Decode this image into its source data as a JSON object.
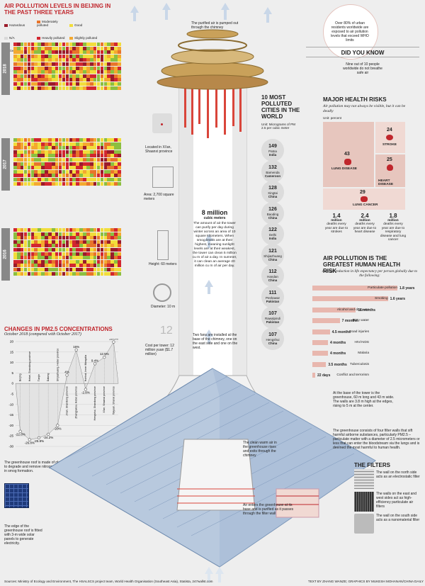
{
  "aq": {
    "title": "AIR POLLUTION LEVELS IN BEIJING IN THE PAST THREE YEARS",
    "legend": [
      {
        "label": "Hazardous",
        "color": "#9b1b2a"
      },
      {
        "label": "Moderately polluted",
        "color": "#e8742a"
      },
      {
        "label": "Good",
        "color": "#f2dd3b"
      },
      {
        "label": "N/A",
        "color": "#d9d9d9"
      },
      {
        "label": "Heavily polluted",
        "color": "#d2262f"
      },
      {
        "label": "Slightly polluted",
        "color": "#f4a92f"
      },
      {
        "label": "Excellent",
        "color": "#8cbf3f"
      }
    ],
    "years": [
      "2016",
      "2017",
      "2018"
    ],
    "months": [
      "JAN",
      "FEB",
      "MAR",
      "APR",
      "MAY",
      "JUN",
      "JUL",
      "AUG",
      "SEP",
      "OCT",
      "NOV",
      "DEC"
    ]
  },
  "tower": {
    "top_note": "The purified air is pumped out through the chimney",
    "location": "Located in Xi'an, Shaanxi province",
    "area": "Area: 2,700 square meters",
    "height": "Height: 60 meters",
    "diameter": "Diameter: 10 m",
    "cost_num": "12",
    "cost": "Cost per tower: 12 million yuan ($1.7 million)",
    "purify_big": "8 million",
    "purify_unit": "cubic meters",
    "purify_text": "The amount of air the tower can purify per day during winter across an area of 10 square kilometers. When smog levels are at their highest, meaning sunlight levels are at their weakest, the tower can clean 5 million cu m of air a day. In summer, it can clean an average 20 million cu m of air per day.",
    "fans_note": "Two fans are installed at the base of the chimney, one on the east side and one on the west.",
    "warm_note": "The clean warm air in the greenhouse rises and exits through the chimney",
    "enter_note": "Air enters the greenhouse at its base and is purified as it passes through the filter wall",
    "base_note": "At the base of the tower is the greenhouse, 60 m long and 43 m wide. The walls are 3.8 m high at the edges, rising to 5 m at the center.",
    "filter_note": "The greenhouse consists of four filter walls that sift harmful airborne substances, particularly PM2.5 – particulate matter with a diameter of 2.5 micrometers or less that can enter the bloodstream via the lungs and is deemed the most harmful to human health.",
    "glass_note": "The greenhouse roof is made of glass coated with a membrane that helps to degrade and remove nitrogen oxides, air pollutants considered crucial in smog formation.",
    "solar_note": "The edge of the greenhouse roof is fitted with 3-m wide solar panels to generate electricity."
  },
  "cities": {
    "title": "10 MOST POLLUTED CITIES IN THE WORLD",
    "sub": "Unit: Micrograms of PM 2.5 per cubic meter",
    "list": [
      {
        "v": "149",
        "city": "Patna",
        "country": "India"
      },
      {
        "v": "132",
        "city": "Bamenda",
        "country": "Cameroon"
      },
      {
        "v": "128",
        "city": "Xingtai",
        "country": "China"
      },
      {
        "v": "126",
        "city": "Baoding",
        "country": "China"
      },
      {
        "v": "122",
        "city": "Delhi",
        "country": "India"
      },
      {
        "v": "121",
        "city": "Shijiazhuang",
        "country": "China"
      },
      {
        "v": "112",
        "city": "Handan",
        "country": "China"
      },
      {
        "v": "111",
        "city": "Peshawar",
        "country": "Pakistan"
      },
      {
        "v": "107",
        "city": "Rawalpindi",
        "country": "Pakistan"
      },
      {
        "v": "107",
        "city": "Hengshui",
        "country": "China"
      }
    ]
  },
  "dyk": {
    "fact_top": "Over 80% of urban residents worldwide are exposed to air pollution levels that exceed WHO limits",
    "title": "DID YOU KNOW",
    "fact": "Nine out of 10 people worldwide do not breathe safe air"
  },
  "risks": {
    "title": "MAJOR HEALTH RISKS",
    "sub": "Air pollution may not always be visible, but it can be deadly",
    "unit": "Unit: percent",
    "items": [
      {
        "v": "43",
        "label": "LUNG DISEASE"
      },
      {
        "v": "24",
        "label": "STROKE"
      },
      {
        "v": "25",
        "label": "HEART DISEASE"
      },
      {
        "v": "29",
        "label": "LUNG CANCER"
      }
    ],
    "deaths": [
      {
        "v": "1.4",
        "u": "million",
        "t": "deaths every year are due to strokes"
      },
      {
        "v": "2.4",
        "u": "million",
        "t": "deaths every year are due to heart disease"
      },
      {
        "v": "1.8",
        "u": "million",
        "t": "deaths every year are due to respiratory disease and lung cancer"
      }
    ]
  },
  "lifeexp": {
    "title": "AIR POLLUTION IS THE GREATEST HUMAN HEALTH RISK",
    "sub": "Average reduction in life expectancy per person globally due to the following:",
    "items": [
      {
        "label": "Particulate pollution",
        "value": "1.8 years",
        "v": 1.8
      },
      {
        "label": "Smoking",
        "value": "1.6 years",
        "v": 1.6
      },
      {
        "label": "Alcohol and drug use",
        "value": "11 months",
        "v": 0.92
      },
      {
        "label": "Dirty water",
        "value": "7 months",
        "v": 0.58
      },
      {
        "label": "Road injuries",
        "value": "4.5 months",
        "v": 0.37
      },
      {
        "label": "HIV/AIDS",
        "value": "4 months",
        "v": 0.33
      },
      {
        "label": "Malaria",
        "value": "4 months",
        "v": 0.33
      },
      {
        "label": "Tuberculosis",
        "value": "3.5 months",
        "v": 0.29
      },
      {
        "label": "Conflict and terrorism",
        "value": "22 days",
        "v": 0.06
      }
    ]
  },
  "filters": {
    "title": "THE FILTERS",
    "items": [
      "The wall on the north side acts as an electrostatic filter",
      "The walls on the east and west sides act as high-efficiency particulate air filters",
      "The wall on the south side acts as a nanomaterial filter"
    ]
  },
  "chart_data": {
    "type": "bar",
    "title": "CHANGES IN PM2.5 CONCENTRATIONS",
    "subtitle": "October 2018 (compared with October 2017)",
    "categories": [
      "Beijing",
      "Hebei, Shandong province",
      "Tianjin",
      "Datong",
      "Shijiazhuang, Hebei province",
      "Jinan, Shandong province",
      "Zhangjiakou, Hebei province",
      "Hohhot, Inner Mongolia",
      "Hengshui, Shandong province",
      "Xi'an, Shaanxi province",
      "Taiyuan, Shanxi province"
    ],
    "values": [
      -22.8,
      -26.8,
      -25.9,
      -24.2,
      -20,
      4,
      16,
      -2.8,
      9.4,
      12.5,
      19.8
    ],
    "ylim": [
      -30,
      20
    ],
    "yticks": [
      "20",
      "15",
      "10",
      "5",
      "0",
      "-5",
      "-10",
      "-15",
      "-20",
      "-25",
      "-30"
    ]
  },
  "footer": {
    "sources": "Sources: Ministry of Ecology and Environment, The HSALSCS project team, World Health Organisation (Southeast Asia), Statista, 247wallst.com",
    "credit": "TEXT BY ZHANG WANZE; GRAPHICS BY MUKESH MOHANAN/CHINA DAILY"
  }
}
